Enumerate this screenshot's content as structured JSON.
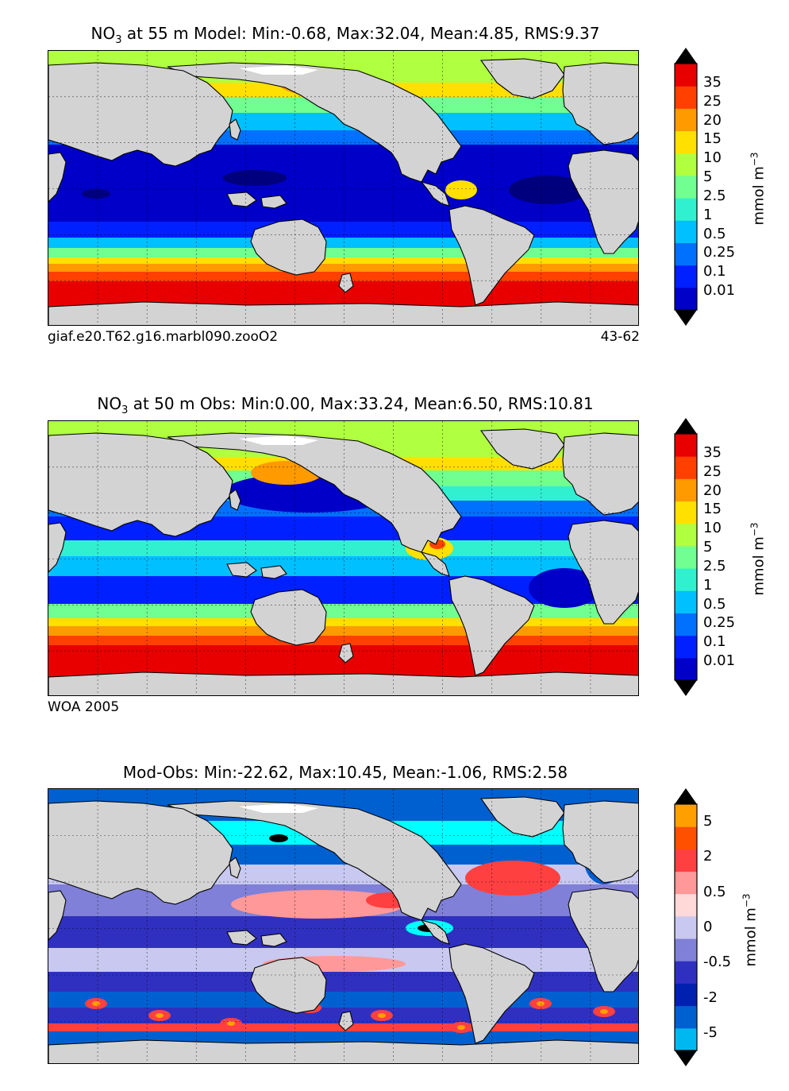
{
  "panels": [
    {
      "title_pre": "NO",
      "title_sub": "3",
      "title_post": " at 55 m Model: Min:-0.68, Max:32.04, Mean:4.85, RMS:9.37",
      "left_label": "giaf.e20.T62.g16.marbl090.zooO2",
      "right_label": "43-62",
      "colorbar_ticks": [
        "0.01",
        "0.1",
        "0.25",
        "0.5",
        "1",
        "2.5",
        "5",
        "10",
        "15",
        "20",
        "25",
        "35"
      ],
      "colorbar_colors": [
        "#00007f",
        "#0000c8",
        "#0020ff",
        "#0070ff",
        "#00c0ff",
        "#30f0d0",
        "#70ff90",
        "#b0ff40",
        "#ffe000",
        "#ff9a00",
        "#ff4000",
        "#e80000",
        "#800000"
      ],
      "units_pre": "mmol m",
      "units_sup": "−3"
    },
    {
      "title_pre": "NO",
      "title_sub": "3",
      "title_post": " at 50 m Obs: Min:0.00, Max:33.24, Mean:6.50, RMS:10.81",
      "left_label": "WOA 2005",
      "right_label": "",
      "colorbar_ticks": [
        "0.01",
        "0.1",
        "0.25",
        "0.5",
        "1",
        "2.5",
        "5",
        "10",
        "15",
        "20",
        "25",
        "35"
      ],
      "colorbar_colors": [
        "#00007f",
        "#0000c8",
        "#0020ff",
        "#0070ff",
        "#00c0ff",
        "#30f0d0",
        "#70ff90",
        "#b0ff40",
        "#ffe000",
        "#ff9a00",
        "#ff4000",
        "#e80000",
        "#800000"
      ],
      "units_pre": "mmol m",
      "units_sup": "−3"
    },
    {
      "title_pre": "Mod-Obs: Min:-22.62, Max:10.45, Mean:-1.06, RMS:2.58",
      "title_sub": "",
      "title_post": "",
      "left_label": "",
      "right_label": "",
      "colorbar_ticks": [
        "-5",
        "",
        "-2",
        "",
        "-0.5",
        "",
        "0",
        "",
        "0.5",
        "",
        "2",
        "",
        "5"
      ],
      "colorbar_colors": [
        "#00ffff",
        "#00b8f0",
        "#0060d0",
        "#0020b0",
        "#3030c0",
        "#8080d8",
        "#c8c8f0",
        "#ffd8d8",
        "#ff9898",
        "#ff4040",
        "#ff5000",
        "#ffa000",
        "#ffff40"
      ],
      "units_pre": "mmol m",
      "units_sup": "−3"
    }
  ]
}
